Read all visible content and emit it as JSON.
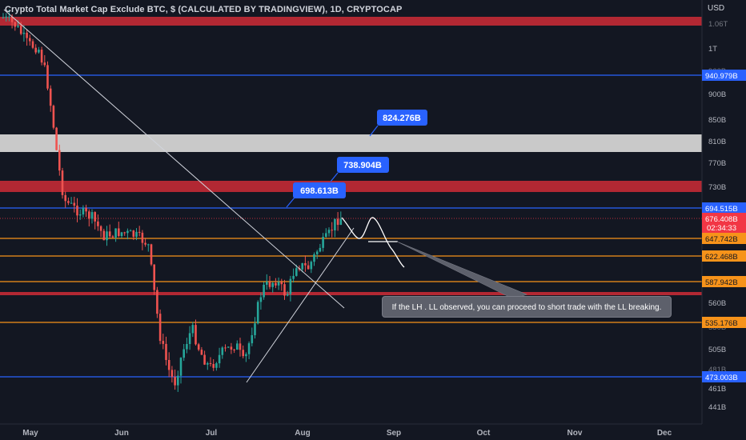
{
  "title": "Crypto Total Market Cap Exclude BTC, $ (CALCULATED BY TRADINGVIEW), 1D, CRYPTOCAP",
  "currency": "USD",
  "chart_data": {
    "type": "candlestick",
    "y_ticks": [
      "1T",
      "900B",
      "850B",
      "810B",
      "770B",
      "730B",
      "560B",
      "505B",
      "461B",
      "441B"
    ],
    "y_ticks_partial": [
      "1.06T",
      "960B",
      "530B",
      "481B"
    ],
    "x_ticks": [
      "May",
      "Jun",
      "Jul",
      "Aug",
      "Sep",
      "Oct",
      "Nov",
      "Dec"
    ],
    "price_tags": [
      {
        "label": "940.979B",
        "color": "#2962ff",
        "line": "horizontal"
      },
      {
        "label": "694.515B",
        "color": "#2962ff",
        "line": "horizontal"
      },
      {
        "label": "676.408B",
        "color": "#f23645",
        "line": "dotted"
      },
      {
        "label": "02:34:33",
        "color": "#f23645",
        "line": "none"
      },
      {
        "label": "647.742B",
        "color": "#f7931a",
        "line": "horizontal"
      },
      {
        "label": "622.468B",
        "color": "#f7931a",
        "line": "horizontal"
      },
      {
        "label": "587.942B",
        "color": "#f7931a",
        "line": "horizontal"
      },
      {
        "label": "535.176B",
        "color": "#f7931a",
        "line": "horizontal"
      },
      {
        "label": "473.003B",
        "color": "#2962ff",
        "line": "horizontal"
      }
    ],
    "callouts": [
      "824.276B",
      "738.904B",
      "698.613B"
    ],
    "zones": [
      {
        "color": "#b22833",
        "label": "resistance near 1.06T"
      },
      {
        "color": "#c9c9c9",
        "label": "zone 790B-824B"
      },
      {
        "color": "#b22833",
        "label": "zone 725B-742B"
      },
      {
        "color": "#b22833",
        "label": "line near 572B"
      }
    ],
    "annotation": "If the LH . LL  observed, you can proceed to short trade with the LL breaking."
  }
}
